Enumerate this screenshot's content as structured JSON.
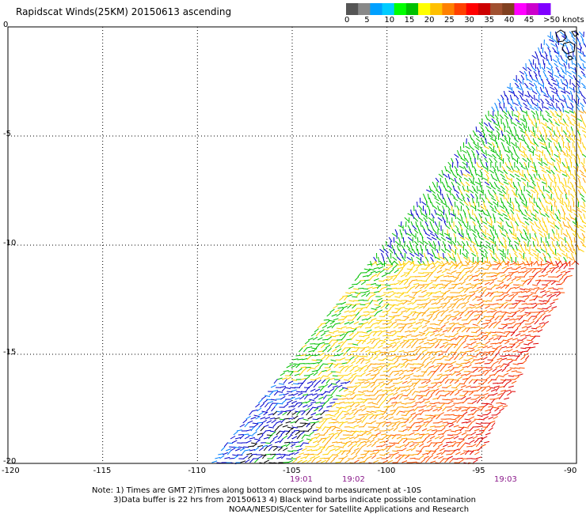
{
  "title": "Rapidscat Winds(25KM) 20150613 ascending",
  "legend": {
    "colors": [
      "#555555",
      "#888888",
      "#00a0ff",
      "#00ccff",
      "#00ff00",
      "#00c000",
      "#ffff00",
      "#ffc000",
      "#ff8000",
      "#ff4000",
      "#ff0000",
      "#cc0000",
      "#a05030",
      "#804020",
      "#ff00ff",
      "#cc00cc",
      "#8000ff"
    ],
    "labels": [
      "0",
      "5",
      "10",
      "15",
      "20",
      "25",
      "30",
      "35",
      "40",
      "45"
    ],
    "unit": ">50 knots"
  },
  "axes": {
    "lon_labels": [
      "-120",
      "-115",
      "-110",
      "-105",
      "-100",
      "-95",
      "-90"
    ],
    "lat_labels": [
      "0",
      "-5",
      "-10",
      "-15",
      "-20"
    ],
    "lon_range": [
      -120,
      -90
    ],
    "lat_range": [
      0,
      -20
    ]
  },
  "times": [
    "19:01",
    "19:02",
    "19:03"
  ],
  "notes": [
    "Note: 1) Times are GMT 2)Times along bottom correspond to measurement at -10S",
    "3)Data buffer is 22 hrs from 20150613 4) Black wind barbs indicate possible contamination",
    "NOAA/NESDIS/Center for Satellite Applications and Research"
  ]
}
